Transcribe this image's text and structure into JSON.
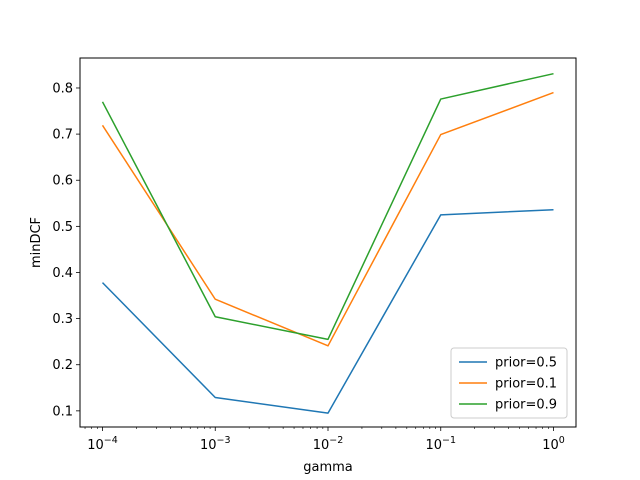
{
  "chart_data": {
    "type": "line",
    "xscale": "log",
    "x": [
      0.0001,
      0.001,
      0.01,
      0.1,
      1
    ],
    "xtick_labels": [
      {
        "base": "10",
        "exp": "−4"
      },
      {
        "base": "10",
        "exp": "−3"
      },
      {
        "base": "10",
        "exp": "−2"
      },
      {
        "base": "10",
        "exp": "−1"
      },
      {
        "base": "10",
        "exp": "0"
      }
    ],
    "yticks": [
      "0.1",
      "0.2",
      "0.3",
      "0.4",
      "0.5",
      "0.6",
      "0.7",
      "0.8"
    ],
    "ylim": [
      0.065,
      0.865
    ],
    "xlabel": "gamma",
    "ylabel": "minDCF",
    "grid": false,
    "legend_position": "lower-right",
    "series": [
      {
        "name": "prior=0.5",
        "color": "#1f77b4",
        "values": [
          0.378,
          0.129,
          0.095,
          0.525,
          0.536
        ]
      },
      {
        "name": "prior=0.1",
        "color": "#ff7f0e",
        "values": [
          0.719,
          0.342,
          0.241,
          0.699,
          0.79
        ]
      },
      {
        "name": "prior=0.9",
        "color": "#2ca02c",
        "values": [
          0.77,
          0.304,
          0.255,
          0.776,
          0.831
        ]
      }
    ]
  }
}
